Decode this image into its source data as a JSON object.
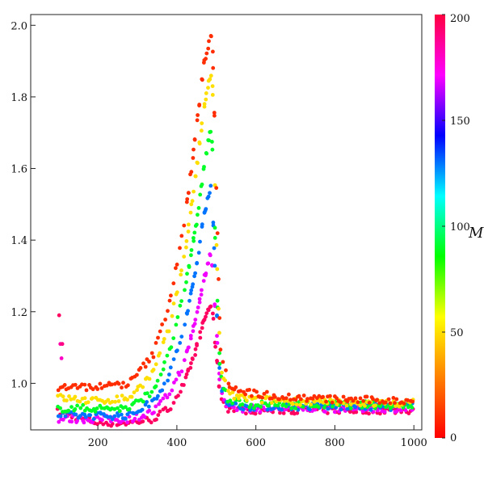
{
  "chart_data": {
    "type": "scatter",
    "title": "",
    "xlabel": "",
    "ylabel": "",
    "xlim": [
      30,
      1020
    ],
    "ylim": [
      0.87,
      2.03
    ],
    "grid": false,
    "x_ticks": [
      200,
      400,
      600,
      800,
      1000
    ],
    "x_tick_labels": [
      "200",
      "400",
      "600",
      "800",
      "1000"
    ],
    "y_ticks": [
      1.0,
      1.2,
      1.4,
      1.6,
      1.8,
      2.0
    ],
    "y_tick_labels": [
      "1.0",
      "1.2",
      "1.4",
      "1.6",
      "1.8",
      "2.0"
    ],
    "colorbar": {
      "label": "M",
      "range": [
        0,
        200
      ],
      "ticks": [
        0,
        50,
        100,
        150,
        200
      ],
      "tick_labels": [
        "0",
        "50",
        "100",
        "150",
        "200"
      ],
      "colormap": "rainbow",
      "colors": [
        "#ff0000",
        "#ff8000",
        "#ffff00",
        "#00ff00",
        "#00ffff",
        "#0000ff",
        "#ff00ff",
        "#ff0040"
      ]
    },
    "series": [
      {
        "M": 10,
        "x": [
          100,
          200,
          280,
          340,
          380,
          420,
          450,
          470,
          485,
          490,
          500,
          510,
          530,
          560,
          600,
          700,
          800,
          1000
        ],
        "y": [
          0.99,
          0.99,
          1.0,
          1.08,
          1.22,
          1.45,
          1.72,
          1.9,
          1.97,
          1.96,
          1.55,
          1.1,
          1.0,
          0.98,
          0.97,
          0.96,
          0.955,
          0.95
        ]
      },
      {
        "M": 50,
        "x": [
          100,
          200,
          280,
          340,
          380,
          420,
          450,
          470,
          485,
          490,
          500,
          510,
          530,
          560,
          600,
          700,
          800,
          1000
        ],
        "y": [
          0.96,
          0.95,
          0.96,
          1.03,
          1.15,
          1.36,
          1.6,
          1.78,
          1.86,
          1.84,
          1.4,
          1.05,
          0.97,
          0.96,
          0.955,
          0.95,
          0.945,
          0.945
        ]
      },
      {
        "M": 90,
        "x": [
          100,
          200,
          280,
          340,
          380,
          420,
          450,
          470,
          485,
          490,
          500,
          510,
          530,
          560,
          600,
          700,
          800,
          1000
        ],
        "y": [
          0.93,
          0.93,
          0.93,
          0.98,
          1.08,
          1.26,
          1.45,
          1.62,
          1.7,
          1.66,
          1.3,
          1.02,
          0.95,
          0.945,
          0.94,
          0.94,
          0.94,
          0.94
        ]
      },
      {
        "M": 130,
        "x": [
          100,
          200,
          280,
          340,
          380,
          420,
          450,
          470,
          485,
          490,
          500,
          510,
          530,
          560,
          600,
          700,
          800,
          1000
        ],
        "y": [
          0.91,
          0.91,
          0.91,
          0.95,
          1.02,
          1.16,
          1.33,
          1.48,
          1.55,
          1.5,
          1.22,
          1.0,
          0.94,
          0.935,
          0.935,
          0.935,
          0.935,
          0.935
        ]
      },
      {
        "M": 170,
        "x": [
          100,
          200,
          280,
          340,
          380,
          420,
          450,
          470,
          485,
          490,
          500,
          510,
          530,
          560,
          600,
          700,
          800,
          1000
        ],
        "y": [
          0.9,
          0.9,
          0.9,
          0.92,
          0.97,
          1.06,
          1.19,
          1.3,
          1.36,
          1.33,
          1.15,
          0.98,
          0.935,
          0.93,
          0.93,
          0.93,
          0.93,
          0.93
        ]
      },
      {
        "M": 195,
        "x": [
          100,
          200,
          280,
          340,
          380,
          420,
          450,
          470,
          485,
          490,
          500,
          510,
          530,
          560,
          600,
          700,
          800,
          1000
        ],
        "y": [
          0.92,
          0.89,
          0.89,
          0.9,
          0.93,
          1.0,
          1.1,
          1.18,
          1.22,
          1.2,
          1.08,
          0.96,
          0.93,
          0.925,
          0.925,
          0.925,
          0.925,
          0.925
        ]
      }
    ],
    "outliers": [
      {
        "M": 195,
        "x": 102,
        "y": 1.19
      },
      {
        "M": 185,
        "x": 105,
        "y": 1.11
      },
      {
        "M": 190,
        "x": 110,
        "y": 1.11
      },
      {
        "M": 180,
        "x": 108,
        "y": 1.07
      }
    ]
  }
}
